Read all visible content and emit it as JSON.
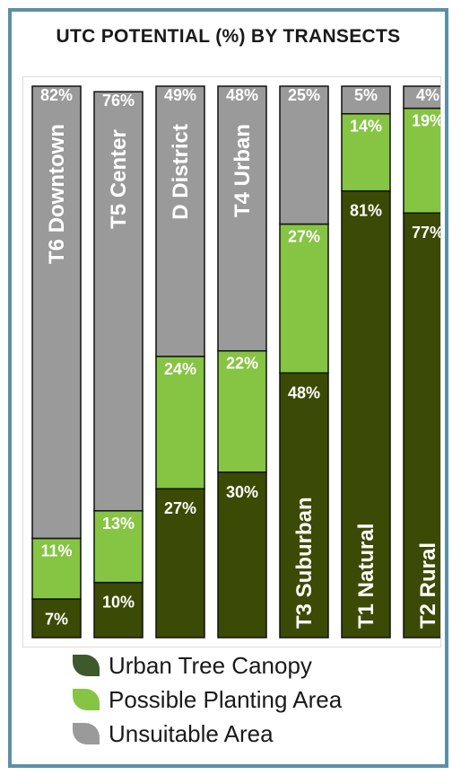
{
  "title": "UTC POTENTIAL (%) BY TRANSECTS",
  "colors": {
    "canopy": "#3b4a04",
    "planting": "#86c443",
    "unsuitable": "#9a9a9a",
    "frame": "#5d8fa6"
  },
  "legend": [
    {
      "key": "canopy",
      "label": "Urban Tree Canopy"
    },
    {
      "key": "planting",
      "label": "Possible Planting Area"
    },
    {
      "key": "unsuitable",
      "label": "Unsuitable Area"
    }
  ],
  "chart_data": {
    "type": "bar",
    "stacked": true,
    "orientation": "vertical",
    "title": "UTC POTENTIAL (%) BY TRANSECTS",
    "categories": [
      "T6 Downtown",
      "T5 Center",
      "D District",
      "T4 Urban",
      "T3 Suburban",
      "T1 Natural",
      "T2 Rural"
    ],
    "series": [
      {
        "name": "Urban Tree Canopy",
        "values": [
          7,
          10,
          27,
          30,
          48,
          81,
          77
        ]
      },
      {
        "name": "Possible Planting Area",
        "values": [
          11,
          13,
          24,
          22,
          27,
          14,
          19
        ]
      },
      {
        "name": "Unsuitable Area",
        "values": [
          82,
          76,
          49,
          48,
          25,
          5,
          4
        ]
      }
    ],
    "ylim": [
      0,
      100
    ],
    "grid": false,
    "legend_position": "bottom"
  }
}
